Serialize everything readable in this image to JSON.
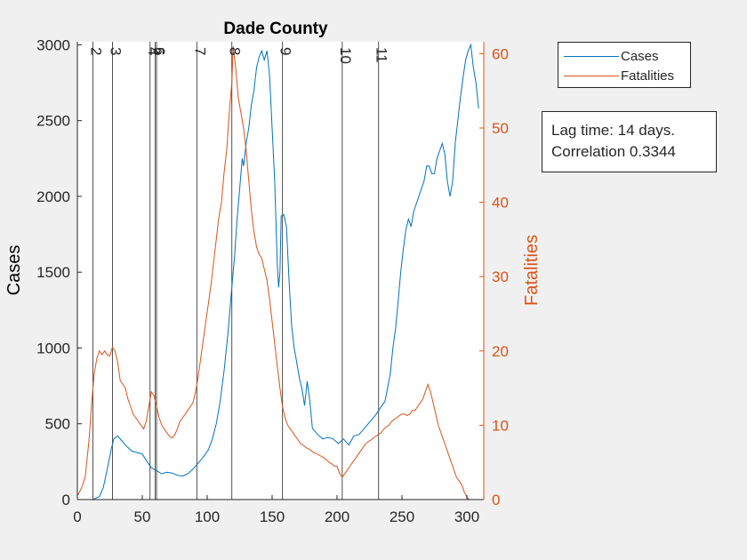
{
  "chart_data": {
    "type": "line",
    "title": "Dade County",
    "xlabel": "",
    "ylabel": "Cases",
    "y2label": "Fatalities",
    "xlim": [
      0,
      313
    ],
    "ylim": [
      0,
      3020
    ],
    "y2lim": [
      0,
      61.6
    ],
    "xticks": [
      "0",
      "50",
      "100",
      "150",
      "200",
      "250",
      "300"
    ],
    "yticks": [
      "0",
      "500",
      "1000",
      "1500",
      "2000",
      "2500",
      "3000"
    ],
    "y2ticks": [
      "0",
      "10",
      "20",
      "30",
      "40",
      "50",
      "60"
    ],
    "grid": false,
    "legend_position": "outside-top-right",
    "series": [
      {
        "name": "Cases",
        "axis": "left",
        "color": "#0072BD",
        "points": [
          [
            0,
            0
          ],
          [
            12,
            0
          ],
          [
            17,
            20
          ],
          [
            20,
            80
          ],
          [
            23,
            200
          ],
          [
            26,
            330
          ],
          [
            28,
            400
          ],
          [
            31,
            420
          ],
          [
            34,
            390
          ],
          [
            38,
            350
          ],
          [
            42,
            320
          ],
          [
            46,
            310
          ],
          [
            50,
            300
          ],
          [
            53,
            260
          ],
          [
            57,
            210
          ],
          [
            61,
            190
          ],
          [
            65,
            170
          ],
          [
            69,
            180
          ],
          [
            73,
            175
          ],
          [
            77,
            160
          ],
          [
            81,
            155
          ],
          [
            85,
            170
          ],
          [
            89,
            200
          ],
          [
            93,
            240
          ],
          [
            97,
            280
          ],
          [
            101,
            330
          ],
          [
            104,
            400
          ],
          [
            107,
            500
          ],
          [
            110,
            650
          ],
          [
            113,
            850
          ],
          [
            116,
            1100
          ],
          [
            119,
            1400
          ],
          [
            121,
            1600
          ],
          [
            123,
            1850
          ],
          [
            125,
            2050
          ],
          [
            127,
            2250
          ],
          [
            128,
            2200
          ],
          [
            130,
            2350
          ],
          [
            132,
            2450
          ],
          [
            134,
            2600
          ],
          [
            136,
            2700
          ],
          [
            138,
            2850
          ],
          [
            140,
            2920
          ],
          [
            142,
            2960
          ],
          [
            144,
            2900
          ],
          [
            146,
            2960
          ],
          [
            148,
            2800
          ],
          [
            150,
            2450
          ],
          [
            152,
            2100
          ],
          [
            154,
            1550
          ],
          [
            155,
            1400
          ],
          [
            156,
            1500
          ],
          [
            157,
            1870
          ],
          [
            159,
            1880
          ],
          [
            161,
            1800
          ],
          [
            163,
            1450
          ],
          [
            165,
            1150
          ],
          [
            167,
            1000
          ],
          [
            169,
            900
          ],
          [
            171,
            800
          ],
          [
            173,
            730
          ],
          [
            175,
            620
          ],
          [
            177,
            780
          ],
          [
            179,
            650
          ],
          [
            181,
            470
          ],
          [
            185,
            430
          ],
          [
            189,
            400
          ],
          [
            193,
            410
          ],
          [
            197,
            400
          ],
          [
            201,
            370
          ],
          [
            205,
            400
          ],
          [
            209,
            360
          ],
          [
            213,
            420
          ],
          [
            217,
            430
          ],
          [
            221,
            470
          ],
          [
            225,
            510
          ],
          [
            229,
            550
          ],
          [
            233,
            600
          ],
          [
            237,
            650
          ],
          [
            241,
            830
          ],
          [
            243,
            1000
          ],
          [
            245,
            1120
          ],
          [
            247,
            1300
          ],
          [
            249,
            1500
          ],
          [
            251,
            1650
          ],
          [
            253,
            1780
          ],
          [
            255,
            1850
          ],
          [
            257,
            1800
          ],
          [
            259,
            1900
          ],
          [
            261,
            1950
          ],
          [
            263,
            2000
          ],
          [
            265,
            2050
          ],
          [
            267,
            2100
          ],
          [
            269,
            2200
          ],
          [
            271,
            2200
          ],
          [
            273,
            2150
          ],
          [
            275,
            2150
          ],
          [
            277,
            2250
          ],
          [
            279,
            2300
          ],
          [
            281,
            2350
          ],
          [
            283,
            2280
          ],
          [
            285,
            2100
          ],
          [
            287,
            2000
          ],
          [
            289,
            2100
          ],
          [
            291,
            2350
          ],
          [
            293,
            2500
          ],
          [
            295,
            2650
          ],
          [
            297,
            2780
          ],
          [
            299,
            2900
          ],
          [
            301,
            2960
          ],
          [
            303,
            3000
          ],
          [
            305,
            2850
          ],
          [
            307,
            2750
          ],
          [
            309,
            2580
          ]
        ]
      },
      {
        "name": "Fatalities",
        "axis": "right",
        "color": "#D95319",
        "points": [
          [
            0,
            0.5
          ],
          [
            3,
            1.5
          ],
          [
            6,
            3
          ],
          [
            9,
            8
          ],
          [
            11,
            13
          ],
          [
            13,
            17
          ],
          [
            15,
            19
          ],
          [
            17,
            20
          ],
          [
            19,
            19.5
          ],
          [
            21,
            20
          ],
          [
            23,
            19.5
          ],
          [
            25,
            19.3
          ],
          [
            27,
            20.5
          ],
          [
            29,
            20
          ],
          [
            31,
            18.5
          ],
          [
            33,
            16
          ],
          [
            35,
            15.5
          ],
          [
            37,
            15
          ],
          [
            39,
            13.5
          ],
          [
            41,
            12.5
          ],
          [
            43,
            11.5
          ],
          [
            45,
            11
          ],
          [
            47,
            10.5
          ],
          [
            49,
            10
          ],
          [
            51,
            9.5
          ],
          [
            53,
            10.5
          ],
          [
            55,
            12.5
          ],
          [
            57,
            14.5
          ],
          [
            59,
            14
          ],
          [
            61,
            12.5
          ],
          [
            63,
            11
          ],
          [
            65,
            10
          ],
          [
            67,
            9.5
          ],
          [
            69,
            9
          ],
          [
            71,
            8.5
          ],
          [
            73,
            8.3
          ],
          [
            75,
            8.7
          ],
          [
            77,
            9.5
          ],
          [
            79,
            10.5
          ],
          [
            81,
            11
          ],
          [
            83,
            11.5
          ],
          [
            85,
            12
          ],
          [
            87,
            12.5
          ],
          [
            89,
            13
          ],
          [
            91,
            14.5
          ],
          [
            93,
            16.5
          ],
          [
            95,
            19
          ],
          [
            97,
            21.5
          ],
          [
            99,
            24
          ],
          [
            101,
            26.5
          ],
          [
            103,
            29
          ],
          [
            105,
            32
          ],
          [
            107,
            35
          ],
          [
            109,
            38
          ],
          [
            111,
            40
          ],
          [
            113,
            44
          ],
          [
            115,
            47
          ],
          [
            117,
            52
          ],
          [
            119,
            56
          ],
          [
            120,
            61
          ],
          [
            122,
            58
          ],
          [
            124,
            54
          ],
          [
            126,
            52
          ],
          [
            128,
            50
          ],
          [
            130,
            47
          ],
          [
            132,
            43
          ],
          [
            134,
            39
          ],
          [
            136,
            36
          ],
          [
            138,
            34
          ],
          [
            140,
            33
          ],
          [
            142,
            32.5
          ],
          [
            144,
            31
          ],
          [
            146,
            29.5
          ],
          [
            148,
            27
          ],
          [
            150,
            24
          ],
          [
            152,
            21
          ],
          [
            154,
            18
          ],
          [
            156,
            15
          ],
          [
            158,
            12.5
          ],
          [
            160,
            11
          ],
          [
            162,
            10
          ],
          [
            164,
            9.5
          ],
          [
            166,
            9
          ],
          [
            168,
            8.5
          ],
          [
            170,
            8
          ],
          [
            172,
            7.5
          ],
          [
            174,
            7.3
          ],
          [
            176,
            7
          ],
          [
            178,
            6.8
          ],
          [
            180,
            6.6
          ],
          [
            182,
            6.3
          ],
          [
            184,
            6.2
          ],
          [
            186,
            6
          ],
          [
            188,
            5.8
          ],
          [
            190,
            5.6
          ],
          [
            192,
            5.3
          ],
          [
            194,
            5
          ],
          [
            196,
            4.8
          ],
          [
            198,
            4.5
          ],
          [
            200,
            4.5
          ],
          [
            202,
            3.5
          ],
          [
            204,
            3
          ],
          [
            206,
            3.5
          ],
          [
            208,
            4
          ],
          [
            210,
            4.5
          ],
          [
            212,
            5
          ],
          [
            214,
            5.5
          ],
          [
            216,
            6
          ],
          [
            218,
            6.5
          ],
          [
            220,
            7
          ],
          [
            222,
            7.5
          ],
          [
            224,
            7.8
          ],
          [
            226,
            8
          ],
          [
            228,
            8.3
          ],
          [
            230,
            8.5
          ],
          [
            232,
            8.8
          ],
          [
            234,
            9
          ],
          [
            236,
            9.5
          ],
          [
            238,
            9.8
          ],
          [
            240,
            10
          ],
          [
            242,
            10.5
          ],
          [
            244,
            10.8
          ],
          [
            246,
            11
          ],
          [
            248,
            11.3
          ],
          [
            250,
            11.5
          ],
          [
            252,
            11.5
          ],
          [
            254,
            11.3
          ],
          [
            256,
            11.5
          ],
          [
            258,
            12
          ],
          [
            260,
            12
          ],
          [
            262,
            12.5
          ],
          [
            264,
            13
          ],
          [
            266,
            13.5
          ],
          [
            268,
            14.5
          ],
          [
            270,
            15.5
          ],
          [
            272,
            14.5
          ],
          [
            274,
            13
          ],
          [
            276,
            11.5
          ],
          [
            278,
            10
          ],
          [
            280,
            9
          ],
          [
            282,
            8
          ],
          [
            284,
            7
          ],
          [
            286,
            6
          ],
          [
            288,
            5
          ],
          [
            290,
            4
          ],
          [
            292,
            3
          ],
          [
            294,
            2.5
          ],
          [
            296,
            2
          ],
          [
            298,
            1
          ],
          [
            300,
            0.3
          ],
          [
            302,
            0
          ],
          [
            304,
            0
          ]
        ]
      }
    ],
    "annotations": {
      "labels": [
        "2",
        "3",
        "4",
        "5",
        "6",
        "7",
        "8",
        "9",
        "10",
        "11"
      ],
      "x": [
        12,
        27,
        56,
        60,
        61,
        92,
        119,
        158,
        204,
        232
      ]
    }
  },
  "legend": {
    "items": [
      {
        "label": "Cases",
        "color": "#0072BD"
      },
      {
        "label": "Fatalities",
        "color": "#D95319"
      }
    ]
  },
  "note": {
    "line1": "Lag time: 14 days.",
    "line2": "Correlation 0.3344"
  }
}
